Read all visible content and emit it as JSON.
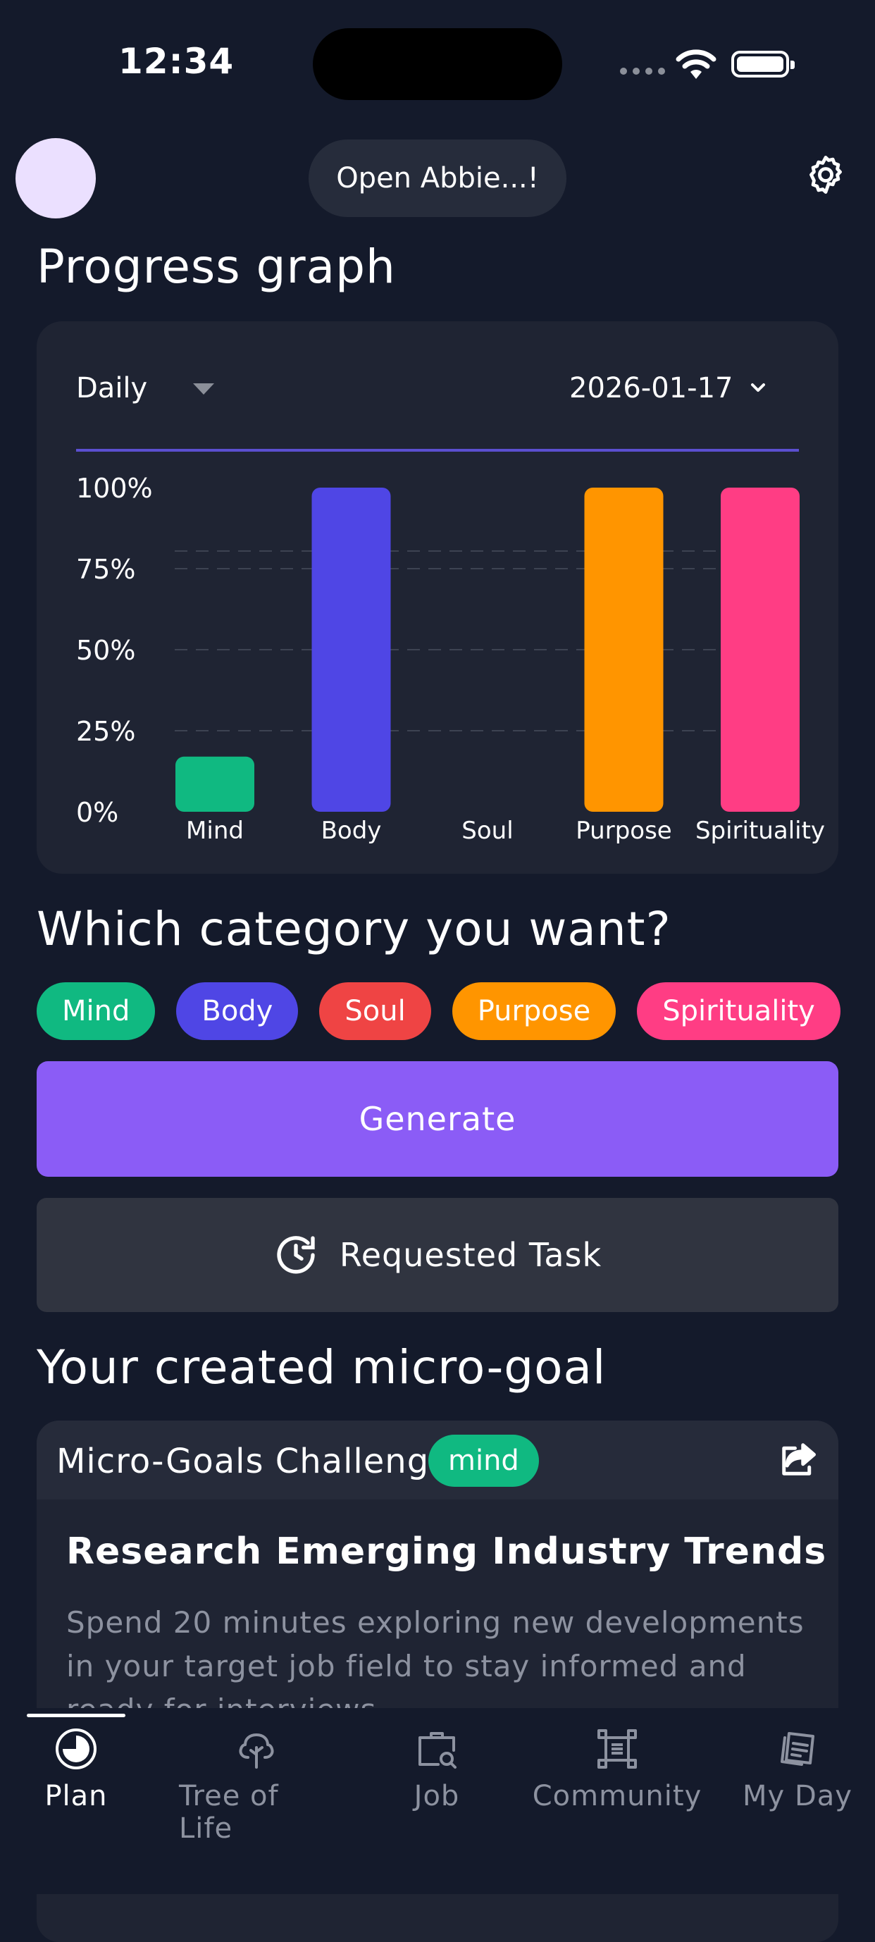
{
  "status_bar": {
    "time": "12:34"
  },
  "header": {
    "assistant_button": "Open Abbie...!"
  },
  "progress": {
    "title": "Progress graph",
    "period": "Daily",
    "date": "2026-01-17"
  },
  "chart_data": {
    "type": "bar",
    "categories": [
      "Mind",
      "Body",
      "Soul",
      "Purpose",
      "Spirituality"
    ],
    "values": [
      17,
      100,
      0,
      100,
      100
    ],
    "colors": [
      "#10b981",
      "#4f46e5",
      "#ef4444",
      "#ff9500",
      "#ff3d84"
    ],
    "yticks": [
      "0%",
      "25%",
      "50%",
      "75%",
      "100%"
    ],
    "ylim": [
      0,
      100
    ],
    "title": "",
    "xlabel": "",
    "ylabel": ""
  },
  "category": {
    "title": "Which category you want?",
    "chips": [
      {
        "label": "Mind",
        "color": "#10b981"
      },
      {
        "label": "Body",
        "color": "#4f46e5"
      },
      {
        "label": "Soul",
        "color": "#ef4444"
      },
      {
        "label": "Purpose",
        "color": "#ff9500"
      },
      {
        "label": "Spirituality",
        "color": "#ff3d84"
      }
    ]
  },
  "actions": {
    "generate": "Generate",
    "requested_task": "Requested Task",
    "requested_icon": "clock-refresh-icon"
  },
  "micro_goal": {
    "title": "Your created micro-goal",
    "card": {
      "header": "Micro-Goals Challenge",
      "tag": "mind",
      "tag_color": "#10b981",
      "goal_title": "Research Emerging Industry Trends",
      "description": "Spend 20 minutes exploring new developments in your target job field to stay informed and ready for interviews."
    }
  },
  "nav": {
    "items": [
      {
        "label": "Plan",
        "icon": "pie-chart-icon",
        "active": true
      },
      {
        "label": "Tree of Life",
        "icon": "tree-icon",
        "active": false
      },
      {
        "label": "Job",
        "icon": "briefcase-search-icon",
        "active": false
      },
      {
        "label": "Community",
        "icon": "community-frame-icon",
        "active": false
      },
      {
        "label": "My Day",
        "icon": "cards-icon",
        "active": false
      }
    ]
  }
}
